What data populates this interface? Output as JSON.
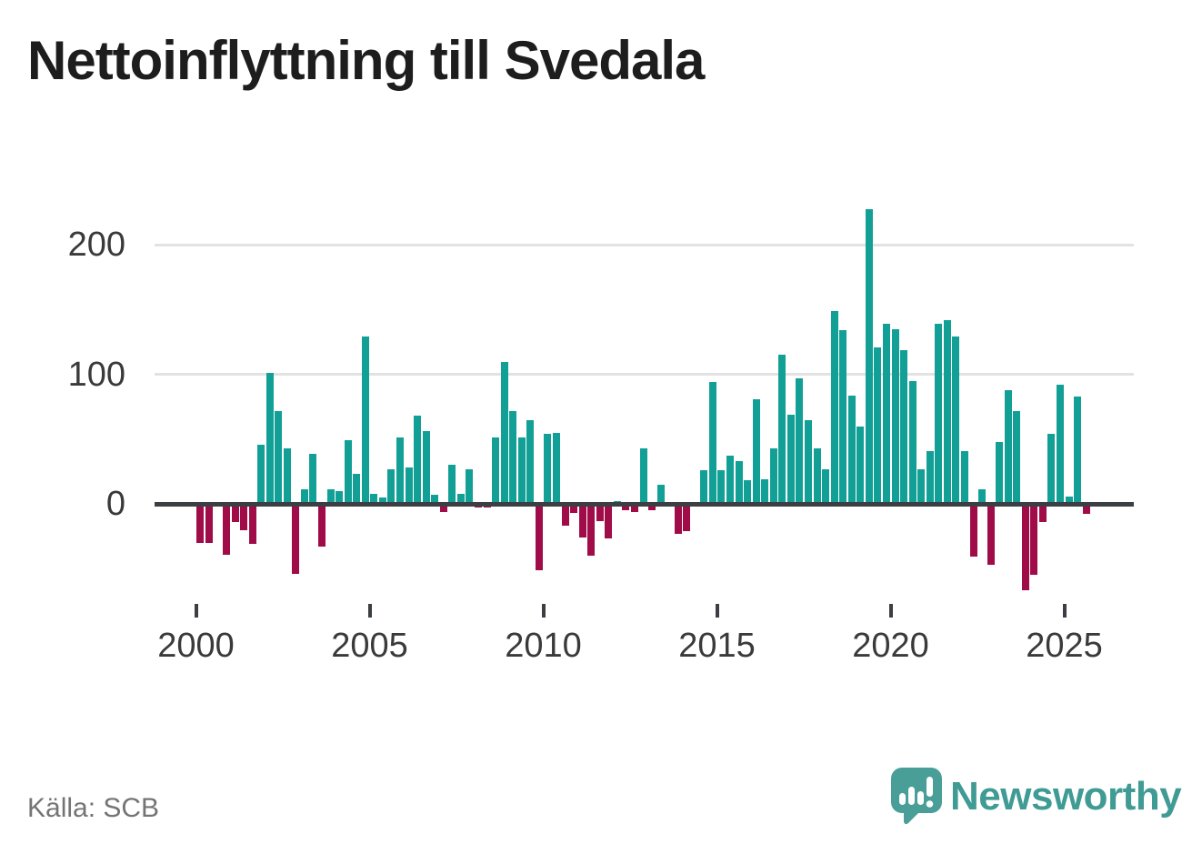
{
  "header": {
    "title": "Nettoinflyttning till Svedala"
  },
  "footer": {
    "source_label": "Källa: SCB",
    "brand_name": "Newsworthy"
  },
  "chart_data": {
    "type": "bar",
    "title": "Nettoinflyttning till Svedala",
    "subtitle": "",
    "frequency": "quarterly",
    "start_year": 2000,
    "start_quarter": 1,
    "end_label": "2025Q3",
    "x_axis": {
      "tick_labels": [
        "2000",
        "2005",
        "2010",
        "2015",
        "2020",
        "2025"
      ]
    },
    "y_axis": {
      "ticks": [
        0,
        100,
        200
      ],
      "tick_labels": [
        "0",
        "100",
        "200"
      ],
      "range": [
        -75,
        235
      ],
      "grid": true,
      "legend": "none"
    },
    "colors": {
      "positive": "#12a096",
      "negative": "#a00c48",
      "baseline": "#3b3e42",
      "gridline": "#e2e2e2"
    },
    "values": [
      -30,
      -30,
      0,
      -39,
      -14,
      -20,
      -31,
      46,
      101,
      72,
      43,
      -54,
      11,
      39,
      -33,
      11,
      10,
      49,
      23,
      129,
      8,
      5,
      27,
      51,
      28,
      68,
      56,
      7,
      -6,
      30,
      8,
      27,
      -3,
      -3,
      51,
      110,
      72,
      51,
      65,
      -51,
      54,
      55,
      -17,
      -7,
      -26,
      -40,
      -13,
      -27,
      2,
      -5,
      -6,
      43,
      -5,
      15,
      0,
      -23,
      -21,
      0,
      26,
      94,
      26,
      37,
      33,
      18,
      81,
      19,
      43,
      115,
      69,
      97,
      65,
      43,
      27,
      149,
      134,
      84,
      60,
      228,
      121,
      139,
      135,
      119,
      95,
      27,
      41,
      139,
      142,
      129,
      41,
      -41,
      11,
      -47,
      48,
      88,
      72,
      -67,
      -55,
      -14,
      54,
      92,
      6,
      83,
      -8
    ]
  }
}
